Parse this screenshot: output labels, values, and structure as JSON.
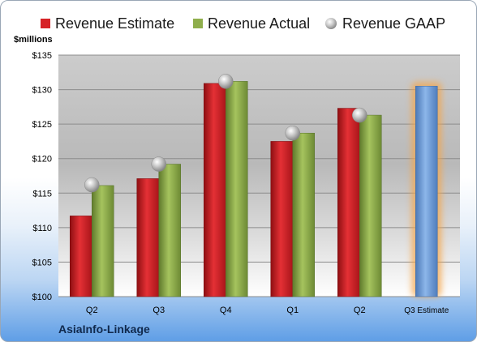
{
  "legend": {
    "estimate": "Revenue Estimate",
    "actual": "Revenue Actual",
    "gaap": "Revenue GAAP"
  },
  "unit_label": "$millions",
  "company": "AsiaInfo-Linkage",
  "colors": {
    "estimate": "#d62226",
    "actual": "#8fae4c",
    "gaap": "#b5b5b5",
    "projection": "#6f9fd8",
    "projection_glow": "#f5a64a"
  },
  "chart_data": {
    "type": "bar",
    "categories": [
      "Q2",
      "Q3",
      "Q4",
      "Q1",
      "Q2",
      "Q3 Estimate"
    ],
    "series": [
      {
        "name": "Revenue Estimate",
        "values": [
          111.7,
          117.1,
          130.9,
          122.5,
          127.3,
          null
        ]
      },
      {
        "name": "Revenue Actual",
        "values": [
          116.1,
          119.2,
          131.2,
          123.7,
          126.3,
          null
        ]
      },
      {
        "name": "Revenue GAAP",
        "values": [
          116.2,
          119.2,
          131.2,
          123.7,
          126.3,
          null
        ]
      },
      {
        "name": "Q3 Estimate",
        "values": [
          null,
          null,
          null,
          null,
          null,
          130.5
        ]
      }
    ],
    "ylabel": "$millions",
    "ylim": [
      100,
      135
    ],
    "yticks": [
      100,
      105,
      110,
      115,
      120,
      125,
      130,
      135
    ],
    "ytick_labels": [
      "$100",
      "$105",
      "$110",
      "$115",
      "$120",
      "$125",
      "$130",
      "$135"
    ],
    "grid": true,
    "legend_position": "top"
  }
}
